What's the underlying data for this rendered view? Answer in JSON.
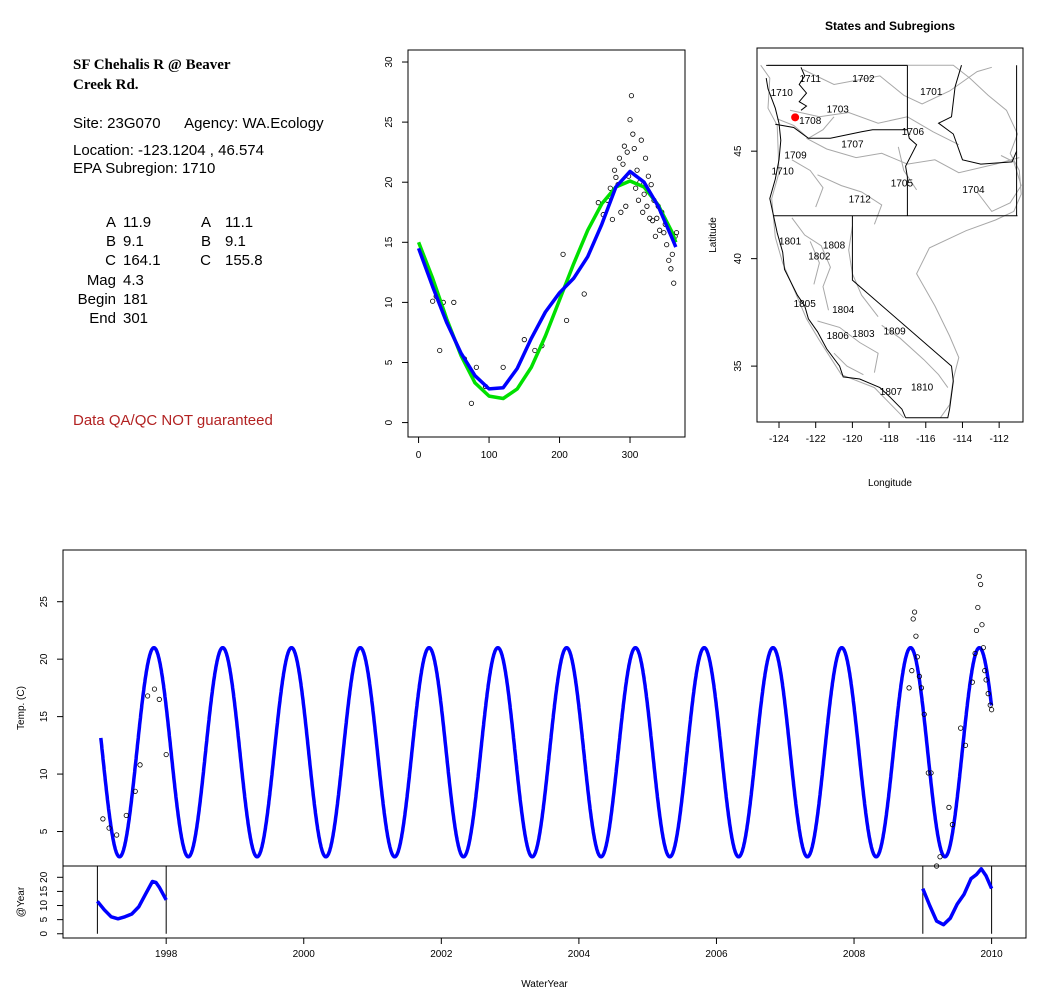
{
  "info": {
    "title": "SF Chehalis R @ Beaver\nCreek Rd.",
    "site_label": "Site: 23G070",
    "agency_label": "Agency: WA.Ecology",
    "location": "Location: -123.1204 , 46.574",
    "subregion": "EPA Subregion: 1710",
    "params": [
      {
        "k": "A",
        "v": "11.9",
        "k2": "A",
        "v2": "11.1"
      },
      {
        "k": "B",
        "v": "9.1",
        "k2": "B",
        "v2": "9.1"
      },
      {
        "k": "C",
        "v": "164.1",
        "k2": "C",
        "v2": "155.8"
      },
      {
        "k": "Mag",
        "v": "4.3",
        "k2": "",
        "v2": ""
      },
      {
        "k": "Begin",
        "v": "181",
        "k2": "",
        "v2": ""
      },
      {
        "k": "End",
        "v": "301",
        "k2": "",
        "v2": ""
      }
    ],
    "qa_note": "Data QA/QC NOT guaranteed",
    "qa_color": "#b22222"
  },
  "chart_data": [
    {
      "type": "scatter",
      "id": "annual",
      "x_ticks": [
        0,
        100,
        200,
        300
      ],
      "y_ticks": [
        0,
        5,
        10,
        15,
        20,
        25,
        30
      ],
      "xlim": [
        -15,
        378
      ],
      "ylim": [
        -1.2,
        31
      ],
      "series": [
        {
          "color": "#00e000",
          "values": [
            [
              0,
              15
            ],
            [
              20,
              12
            ],
            [
              40,
              8.6
            ],
            [
              60,
              5.6
            ],
            [
              80,
              3.3
            ],
            [
              100,
              2.2
            ],
            [
              120,
              2.0
            ],
            [
              140,
              2.8
            ],
            [
              160,
              4.6
            ],
            [
              180,
              7.2
            ],
            [
              200,
              10.2
            ],
            [
              220,
              13.2
            ],
            [
              240,
              16
            ],
            [
              260,
              18.2
            ],
            [
              280,
              19.6
            ],
            [
              300,
              20.1
            ],
            [
              320,
              19.6
            ],
            [
              340,
              18.1
            ],
            [
              360,
              15.8
            ],
            [
              365,
              15
            ]
          ]
        },
        {
          "color": "#0000ff",
          "values": [
            [
              0,
              14.5
            ],
            [
              20,
              11.3
            ],
            [
              40,
              8.3
            ],
            [
              60,
              5.8
            ],
            [
              80,
              3.9
            ],
            [
              100,
              2.8
            ],
            [
              120,
              2.9
            ],
            [
              140,
              4.5
            ],
            [
              160,
              7
            ],
            [
              180,
              9.2
            ],
            [
              200,
              10.8
            ],
            [
              220,
              12
            ],
            [
              240,
              13.8
            ],
            [
              260,
              16.5
            ],
            [
              280,
              19.6
            ],
            [
              300,
              20.9
            ],
            [
              320,
              20
            ],
            [
              340,
              18
            ],
            [
              360,
              15.3
            ],
            [
              365,
              14.6
            ]
          ]
        }
      ],
      "points": [
        [
          20,
          10.1
        ],
        [
          25,
          10.5
        ],
        [
          30,
          6.0
        ],
        [
          35,
          10.0
        ],
        [
          50,
          10.0
        ],
        [
          65,
          5.3
        ],
        [
          75,
          1.6
        ],
        [
          82,
          4.6
        ],
        [
          95,
          3.0
        ],
        [
          120,
          4.6
        ],
        [
          150,
          6.9
        ],
        [
          165,
          6.0
        ],
        [
          175,
          6.4
        ],
        [
          205,
          14.0
        ],
        [
          210,
          8.5
        ],
        [
          235,
          10.7
        ],
        [
          255,
          18.3
        ],
        [
          262,
          17.3
        ],
        [
          268,
          18.5
        ],
        [
          272,
          19.5
        ],
        [
          275,
          16.9
        ],
        [
          278,
          21.0
        ],
        [
          280,
          20.4
        ],
        [
          283,
          19.8
        ],
        [
          285,
          22.0
        ],
        [
          287,
          17.5
        ],
        [
          290,
          21.5
        ],
        [
          292,
          23.0
        ],
        [
          294,
          18.0
        ],
        [
          296,
          22.5
        ],
        [
          298,
          20.5
        ],
        [
          300,
          25.2
        ],
        [
          302,
          27.2
        ],
        [
          304,
          24.0
        ],
        [
          306,
          22.8
        ],
        [
          308,
          19.5
        ],
        [
          310,
          21.0
        ],
        [
          312,
          18.5
        ],
        [
          314,
          20.0
        ],
        [
          316,
          23.5
        ],
        [
          318,
          17.5
        ],
        [
          320,
          19.0
        ],
        [
          322,
          22.0
        ],
        [
          324,
          18.0
        ],
        [
          326,
          20.5
        ],
        [
          328,
          17.0
        ],
        [
          330,
          19.8
        ],
        [
          332,
          16.8
        ],
        [
          334,
          18.5
        ],
        [
          336,
          15.5
        ],
        [
          338,
          17.0
        ],
        [
          340,
          18.0
        ],
        [
          342,
          16.0
        ],
        [
          345,
          17.5
        ],
        [
          348,
          15.8
        ],
        [
          350,
          16.5
        ],
        [
          352,
          14.8
        ],
        [
          355,
          13.5
        ],
        [
          358,
          12.8
        ],
        [
          360,
          14.0
        ],
        [
          362,
          11.6
        ],
        [
          364,
          15.5
        ],
        [
          366,
          15.8
        ]
      ]
    },
    {
      "type": "map",
      "id": "map",
      "title": "States and Subregions",
      "xlabel": "Longitude",
      "ylabel": "Latitude",
      "x_ticks": [
        -124,
        -122,
        -120,
        -118,
        -116,
        -114,
        -112
      ],
      "y_ticks": [
        35,
        40,
        45
      ],
      "xlim": [
        -125.2,
        -110.7
      ],
      "ylim": [
        32.4,
        49.8
      ],
      "site": {
        "lon": -123.1204,
        "lat": 46.574,
        "color": "#ff0000"
      },
      "regions": [
        {
          "label": "1711",
          "lon": -122.3,
          "lat": 48.35
        },
        {
          "label": "1702",
          "lon": -119.4,
          "lat": 48.35
        },
        {
          "label": "1701",
          "lon": -115.7,
          "lat": 47.75
        },
        {
          "label": "1710",
          "lon": -123.85,
          "lat": 47.7
        },
        {
          "label": "1703",
          "lon": -120.8,
          "lat": 46.95
        },
        {
          "label": "1708",
          "lon": -122.3,
          "lat": 46.4
        },
        {
          "label": "1706",
          "lon": -116.7,
          "lat": 45.9
        },
        {
          "label": "1707",
          "lon": -120.0,
          "lat": 45.3
        },
        {
          "label": "1709",
          "lon": -123.1,
          "lat": 44.8
        },
        {
          "label": "1710",
          "lon": -123.8,
          "lat": 44.05
        },
        {
          "label": "1705",
          "lon": -117.3,
          "lat": 43.5
        },
        {
          "label": "1704",
          "lon": -113.4,
          "lat": 43.2
        },
        {
          "label": "1712",
          "lon": -119.6,
          "lat": 42.75
        },
        {
          "label": "1801",
          "lon": -123.4,
          "lat": 40.8
        },
        {
          "label": "1808",
          "lon": -121.0,
          "lat": 40.6
        },
        {
          "label": "1802",
          "lon": -121.8,
          "lat": 40.1
        },
        {
          "label": "1805",
          "lon": -122.6,
          "lat": 37.9
        },
        {
          "label": "1804",
          "lon": -120.5,
          "lat": 37.6
        },
        {
          "label": "1806",
          "lon": -120.8,
          "lat": 36.4
        },
        {
          "label": "1803",
          "lon": -119.4,
          "lat": 36.5
        },
        {
          "label": "1809",
          "lon": -117.7,
          "lat": 36.6
        },
        {
          "label": "1810",
          "lon": -116.2,
          "lat": 34.0
        },
        {
          "label": "1807",
          "lon": -117.9,
          "lat": 33.8
        }
      ]
    },
    {
      "type": "line",
      "id": "timeseries",
      "ylabel": "Temp. (C)",
      "y_ticks": [
        5,
        10,
        15,
        20,
        25
      ],
      "ylim": [
        2,
        29.5
      ],
      "xlim": [
        1996.5,
        2010.5
      ],
      "x_ticks": [
        1998,
        2000,
        2002,
        2004,
        2006,
        2008,
        2010
      ],
      "xlabel": "WaterYear",
      "mean_annual_temp": 11.9,
      "amplitude": 9.1,
      "peak_day": 300,
      "series_color": "#0000ff",
      "points": [
        [
          1997.08,
          6.1
        ],
        [
          1997.17,
          5.3
        ],
        [
          1997.28,
          4.7
        ],
        [
          1997.42,
          6.4
        ],
        [
          1997.55,
          8.5
        ],
        [
          1997.62,
          10.8
        ],
        [
          1997.73,
          16.8
        ],
        [
          1997.83,
          17.4
        ],
        [
          1997.9,
          16.5
        ],
        [
          1998.0,
          11.7
        ],
        [
          2008.8,
          17.5
        ],
        [
          2008.84,
          19.0
        ],
        [
          2008.86,
          23.5
        ],
        [
          2008.88,
          24.1
        ],
        [
          2008.9,
          22.0
        ],
        [
          2008.92,
          20.2
        ],
        [
          2008.95,
          18.5
        ],
        [
          2008.98,
          17.5
        ],
        [
          2009.02,
          15.2
        ],
        [
          2009.08,
          10.1
        ],
        [
          2009.12,
          10.1
        ],
        [
          2009.2,
          2.0
        ],
        [
          2009.25,
          2.8
        ],
        [
          2009.38,
          7.1
        ],
        [
          2009.43,
          5.6
        ],
        [
          2009.55,
          14.0
        ],
        [
          2009.62,
          12.5
        ],
        [
          2009.72,
          18.0
        ],
        [
          2009.76,
          20.5
        ],
        [
          2009.78,
          22.5
        ],
        [
          2009.8,
          24.5
        ],
        [
          2009.82,
          27.2
        ],
        [
          2009.84,
          26.5
        ],
        [
          2009.86,
          23.0
        ],
        [
          2009.88,
          21.0
        ],
        [
          2009.9,
          19.0
        ],
        [
          2009.92,
          18.2
        ],
        [
          2009.95,
          17.0
        ],
        [
          2009.98,
          16.0
        ],
        [
          2010.0,
          15.6
        ]
      ]
    },
    {
      "type": "line",
      "id": "yearly",
      "ylabel": "@Year",
      "y_ticks": [
        0,
        5,
        10,
        15,
        20
      ],
      "ylim": [
        -1.5,
        24
      ],
      "xlim": [
        1996.5,
        2010.5
      ],
      "year_segments": [
        {
          "start": 1997.0,
          "end": 1998.0,
          "values": [
            [
              1997.0,
              11.5
            ],
            [
              1997.1,
              8.5
            ],
            [
              1997.2,
              6.0
            ],
            [
              1997.3,
              5.3
            ],
            [
              1997.4,
              6.0
            ],
            [
              1997.5,
              7.0
            ],
            [
              1997.6,
              9.5
            ],
            [
              1997.7,
              14.0
            ],
            [
              1997.8,
              18.5
            ],
            [
              1997.85,
              18.2
            ],
            [
              1997.9,
              16.5
            ],
            [
              1998.0,
              12.0
            ]
          ]
        },
        {
          "start": 2009.0,
          "end": 2010.0,
          "values": [
            [
              2009.0,
              16.0
            ],
            [
              2009.1,
              10.0
            ],
            [
              2009.2,
              4.5
            ],
            [
              2009.3,
              3.2
            ],
            [
              2009.4,
              5.5
            ],
            [
              2009.5,
              10.5
            ],
            [
              2009.6,
              14.0
            ],
            [
              2009.7,
              19.5
            ],
            [
              2009.78,
              21.0
            ],
            [
              2009.85,
              23.0
            ],
            [
              2009.92,
              20.5
            ],
            [
              2010.0,
              16.0
            ]
          ]
        }
      ]
    }
  ]
}
